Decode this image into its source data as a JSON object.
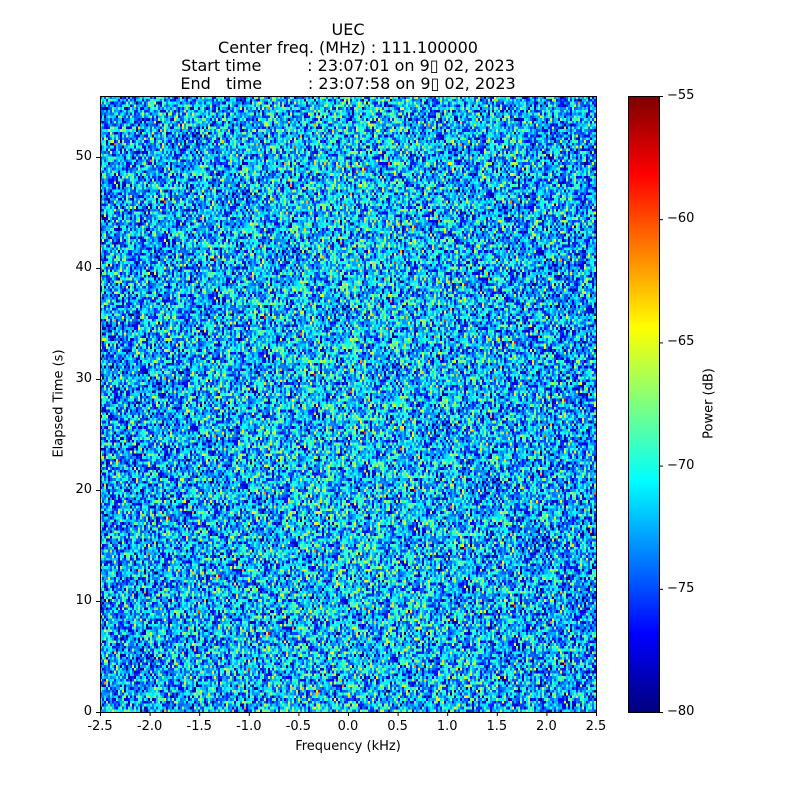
{
  "chart_data": {
    "type": "heatmap",
    "title_lines": [
      "UEC",
      "Center freq. (MHz) : 111.100000",
      "Start time         : 23:07:01 on 9▯ 02, 2023",
      "End   time         : 23:07:58 on 9▯ 02, 2023"
    ],
    "xlabel": "Frequency (kHz)",
    "ylabel": "Elapsed Time (s)",
    "xlim": [
      -2.5,
      2.5
    ],
    "ylim": [
      0,
      55.5
    ],
    "xticks": [
      "-2.5",
      "-2.0",
      "-1.5",
      "-1.0",
      "-0.5",
      "0.0",
      "0.5",
      "1.0",
      "1.5",
      "2.0",
      "2.5"
    ],
    "yticks": [
      "0",
      "10",
      "20",
      "30",
      "40",
      "50"
    ],
    "colorbar": {
      "label": "Power (dB)",
      "range": [
        -80,
        -55
      ],
      "ticks": [
        "−80",
        "−75",
        "−70",
        "−65",
        "−60",
        "−55"
      ],
      "colormap": "jet"
    },
    "z_summary": {
      "typical_mean_db": -72,
      "typical_spread_db": 3.5,
      "note": "noise-like spectrogram"
    }
  }
}
